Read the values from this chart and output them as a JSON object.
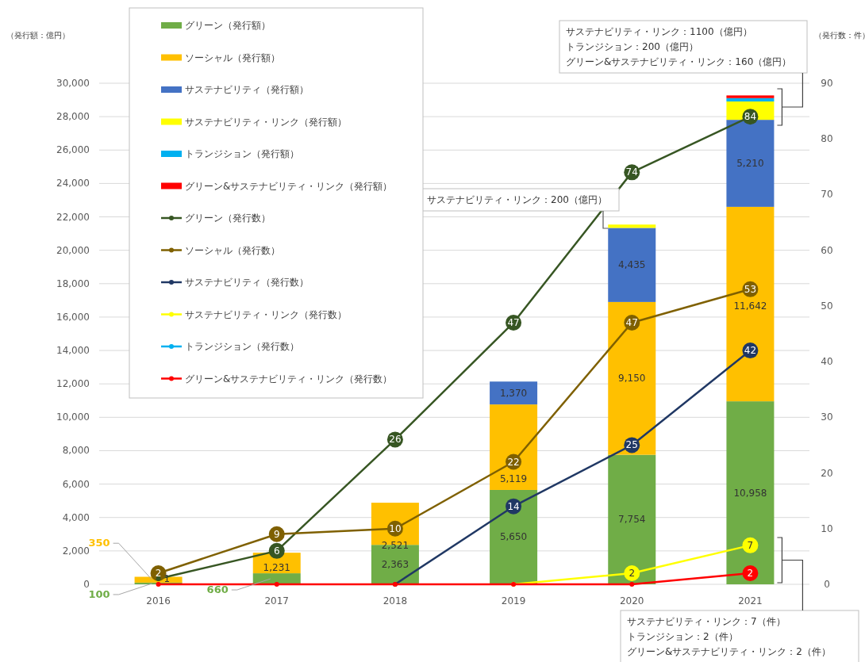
{
  "chart_data": {
    "type": "bar",
    "stacked": true,
    "ylabel": "（発行額：億円）",
    "y2label": "（発行数：件）",
    "categories": [
      "2016",
      "2017",
      "2018",
      "2019",
      "2020",
      "2021"
    ],
    "ylim": [
      0,
      30000
    ],
    "yticks": [
      {
        "value": 0,
        "label": "0"
      },
      {
        "value": 2000,
        "label": "2,000"
      },
      {
        "value": 4000,
        "label": "4,000"
      },
      {
        "value": 6000,
        "label": "6,000"
      },
      {
        "value": 8000,
        "label": "8,000"
      },
      {
        "value": 10000,
        "label": "10,000"
      },
      {
        "value": 12000,
        "label": "12,000"
      },
      {
        "value": 14000,
        "label": "14,000"
      },
      {
        "value": 16000,
        "label": "16,000"
      },
      {
        "value": 18000,
        "label": "18,000"
      },
      {
        "value": 20000,
        "label": "20,000"
      },
      {
        "value": 22000,
        "label": "22,000"
      },
      {
        "value": 24000,
        "label": "24,000"
      },
      {
        "value": 26000,
        "label": "26,000"
      },
      {
        "value": 28000,
        "label": "28,000"
      },
      {
        "value": 30000,
        "label": "30,000"
      }
    ],
    "y2lim": [
      0,
      90
    ],
    "y2ticks": [
      0,
      10,
      20,
      30,
      40,
      50,
      60,
      70,
      80,
      90
    ],
    "grid": "y",
    "legend": "top left",
    "marker": "circle",
    "series": [
      {
        "name": "グリーン（発行額）",
        "color": "#70ad47",
        "values": [
          100,
          660,
          2363,
          5650,
          7754,
          10958
        ],
        "value_labels": [
          "100",
          "660",
          "2,363",
          "5,650",
          "7,754",
          "10,958"
        ]
      },
      {
        "name": "ソーシャル（発行額）",
        "color": "#ffc000",
        "values": [
          350,
          1231,
          2521,
          5119,
          9150,
          11642
        ],
        "value_labels": [
          "350",
          "1,231",
          "2,521",
          "5,119",
          "9,150",
          "11,642"
        ]
      },
      {
        "name": "サステナビリティ（発行額）",
        "color": "#4472c4",
        "values": [
          null,
          null,
          null,
          1370,
          4435,
          5210
        ],
        "value_labels": [
          null,
          null,
          null,
          "1,370",
          "4,435",
          "5,210"
        ]
      },
      {
        "name": "サステナビリティ・リンク（発行額）",
        "color": "#ffff00",
        "values": [
          null,
          null,
          null,
          null,
          200,
          1100
        ]
      },
      {
        "name": "トランジション（発行額）",
        "color": "#00b0f0",
        "values": [
          null,
          null,
          null,
          null,
          null,
          200
        ]
      },
      {
        "name": "グリーン&サステナビリティ・リンク（発行額）",
        "color": "#ff0000",
        "values": [
          null,
          null,
          null,
          null,
          null,
          160
        ]
      },
      {
        "name": "グリーン（発行数）",
        "type": "line",
        "axis": "y2",
        "color": "#375623",
        "values": [
          1,
          6,
          26,
          47,
          74,
          84
        ],
        "value_labels": [
          "1",
          "6",
          "26",
          "47",
          "74",
          "84"
        ]
      },
      {
        "name": "ソーシャル（発行数）",
        "type": "line",
        "axis": "y2",
        "color": "#7f6000",
        "values": [
          2,
          9,
          10,
          22,
          47,
          53
        ],
        "value_labels": [
          "2",
          "9",
          "10",
          "22",
          "47",
          "53"
        ]
      },
      {
        "name": "サステナビリティ（発行数）",
        "type": "line",
        "axis": "y2",
        "color": "#203864",
        "values": [
          null,
          null,
          0,
          14,
          25,
          42
        ],
        "value_labels": [
          null,
          null,
          null,
          "14",
          "25",
          "42"
        ]
      },
      {
        "name": "サステナビリティ・リンク（発行数）",
        "type": "line",
        "axis": "y2",
        "color": "#ffff00",
        "values": [
          null,
          null,
          null,
          0,
          2,
          7
        ],
        "value_labels": [
          null,
          null,
          null,
          null,
          "2",
          "7"
        ]
      },
      {
        "name": "トランジション（発行数）",
        "type": "line",
        "axis": "y2",
        "color": "#00b0f0",
        "values": [
          null,
          null,
          null,
          null,
          null,
          null
        ]
      },
      {
        "name": "グリーン&サステナビリティ・リンク（発行数）",
        "type": "line",
        "axis": "y2",
        "color": "#ff0000",
        "values": [
          0,
          0,
          0,
          0,
          0,
          2
        ],
        "value_labels": [
          null,
          null,
          null,
          null,
          null,
          "2"
        ]
      }
    ],
    "annotations": [
      "サステナビリティ・リンク：1100（億円）",
      "トランジション：200（億円）",
      "グリーン&サステナビリティ・リンク：160（億円）",
      "サステナビリティ・リンク：200（億円）",
      "サステナビリティ・リンク：7（件）",
      "トランジション：2（件）",
      "グリーン&サステナビリティ・リンク：2（件）"
    ]
  }
}
